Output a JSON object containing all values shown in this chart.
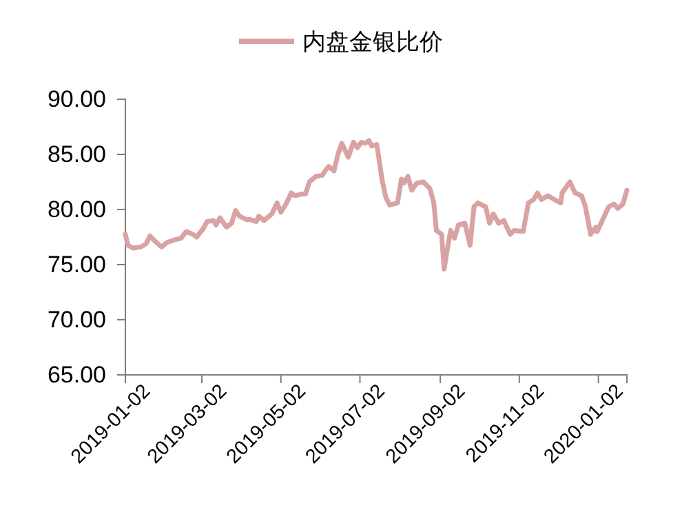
{
  "chart_data": {
    "type": "line",
    "legend": "top",
    "grid": false,
    "xlim": [
      "2019-01-02",
      "2020-01-24"
    ],
    "xticks": [
      "2019-01-02",
      "2019-03-02",
      "2019-05-02",
      "2019-07-02",
      "2019-09-02",
      "2019-11-02",
      "2020-01-02"
    ],
    "ylim": [
      65,
      90
    ],
    "yticks": [
      {
        "value": 65,
        "label": "65.00"
      },
      {
        "value": 70,
        "label": "70.00"
      },
      {
        "value": 75,
        "label": "75.00"
      },
      {
        "value": 80,
        "label": "80.00"
      },
      {
        "value": 85,
        "label": "85.00"
      },
      {
        "value": 90,
        "label": "90.00"
      }
    ],
    "series": [
      {
        "name": "内盘金银比价",
        "color": "#d9a3a3",
        "x": [
          "2019-01-02",
          "2019-01-04",
          "2019-01-08",
          "2019-01-14",
          "2019-01-18",
          "2019-01-21",
          "2019-01-25",
          "2019-01-30",
          "2019-02-03",
          "2019-02-09",
          "2019-02-14",
          "2019-02-18",
          "2019-02-23",
          "2019-02-26",
          "2019-03-03",
          "2019-03-06",
          "2019-03-11",
          "2019-03-13",
          "2019-03-16",
          "2019-03-21",
          "2019-03-25",
          "2019-03-28",
          "2019-03-31",
          "2019-04-05",
          "2019-04-08",
          "2019-04-13",
          "2019-04-15",
          "2019-04-19",
          "2019-04-25",
          "2019-04-29",
          "2019-05-02",
          "2019-05-06",
          "2019-05-10",
          "2019-05-13",
          "2019-05-18",
          "2019-05-21",
          "2019-05-24",
          "2019-05-29",
          "2019-06-03",
          "2019-06-05",
          "2019-06-08",
          "2019-06-12",
          "2019-06-15",
          "2019-06-18",
          "2019-06-20",
          "2019-06-23",
          "2019-06-27",
          "2019-06-30",
          "2019-07-03",
          "2019-07-06",
          "2019-07-09",
          "2019-07-11",
          "2019-07-15",
          "2019-07-19",
          "2019-07-22",
          "2019-07-25",
          "2019-07-31",
          "2019-08-03",
          "2019-08-05",
          "2019-08-08",
          "2019-08-11",
          "2019-08-15",
          "2019-08-20",
          "2019-08-25",
          "2019-08-28",
          "2019-08-30",
          "2019-09-03",
          "2019-09-05",
          "2019-09-07",
          "2019-09-10",
          "2019-09-13",
          "2019-09-16",
          "2019-09-21",
          "2019-09-25",
          "2019-09-28",
          "2019-10-01",
          "2019-10-07",
          "2019-10-10",
          "2019-10-13",
          "2019-10-17",
          "2019-10-21",
          "2019-10-26",
          "2019-10-29",
          "2019-11-05",
          "2019-11-09",
          "2019-11-13",
          "2019-11-16",
          "2019-11-19",
          "2019-11-24",
          "2019-11-29",
          "2019-12-04",
          "2019-12-05",
          "2019-12-11",
          "2019-12-15",
          "2019-12-20",
          "2019-12-23",
          "2019-12-27",
          "2019-12-31",
          "2020-01-01",
          "2020-01-05",
          "2020-01-10",
          "2020-01-14",
          "2020-01-17",
          "2020-01-21",
          "2020-01-24"
        ],
        "values": [
          77.75,
          76.75,
          76.5,
          76.6,
          76.9,
          77.6,
          77.1,
          76.6,
          77.0,
          77.25,
          77.4,
          78.0,
          77.75,
          77.5,
          78.25,
          78.9,
          79.0,
          78.6,
          79.25,
          78.4,
          78.75,
          79.9,
          79.4,
          79.1,
          79.1,
          78.9,
          79.4,
          79.0,
          79.6,
          80.6,
          79.75,
          80.5,
          81.5,
          81.25,
          81.4,
          81.4,
          82.5,
          83.0,
          83.1,
          83.5,
          83.9,
          83.5,
          85.0,
          86.0,
          85.5,
          84.75,
          86.1,
          85.6,
          86.1,
          86.0,
          86.25,
          85.75,
          85.9,
          82.75,
          81.1,
          80.4,
          80.6,
          82.75,
          82.4,
          83.0,
          81.75,
          82.4,
          82.5,
          81.9,
          80.6,
          78.1,
          77.75,
          74.6,
          76.1,
          78.1,
          77.4,
          78.6,
          78.75,
          76.75,
          80.25,
          80.6,
          80.25,
          78.75,
          79.6,
          78.75,
          79.0,
          77.75,
          78.1,
          78.0,
          80.6,
          80.9,
          81.5,
          80.9,
          81.25,
          80.9,
          80.6,
          81.5,
          82.5,
          81.5,
          81.25,
          80.25,
          77.75,
          78.4,
          78.0,
          79.0,
          80.25,
          80.5,
          80.1,
          80.5,
          81.75
        ]
      }
    ]
  }
}
